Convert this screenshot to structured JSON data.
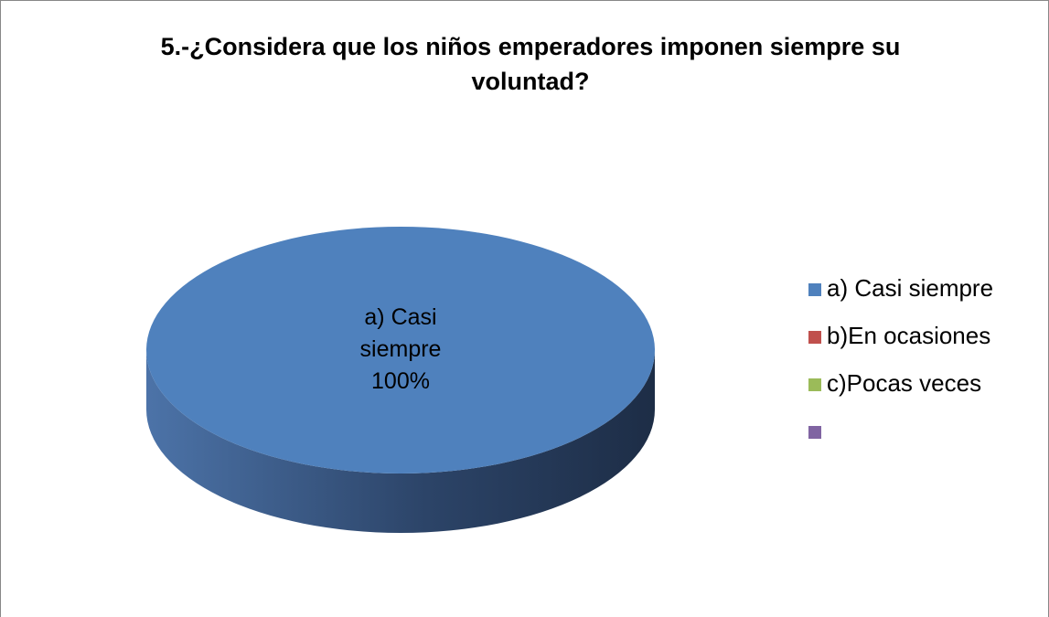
{
  "chart_data": {
    "type": "pie",
    "title": "5.-¿Considera que los niños emperadores imponen siempre su voluntad?",
    "categories": [
      "a) Casi siempre",
      "b)En ocasiones",
      "c)Pocas veces",
      null
    ],
    "values": [
      100,
      0,
      0,
      0
    ],
    "value_labels": [
      "100%",
      null,
      null,
      null
    ],
    "colors": [
      "#4f81bd",
      "#c0504d",
      "#9bbb59",
      "#8064a2"
    ],
    "legend": "right"
  }
}
